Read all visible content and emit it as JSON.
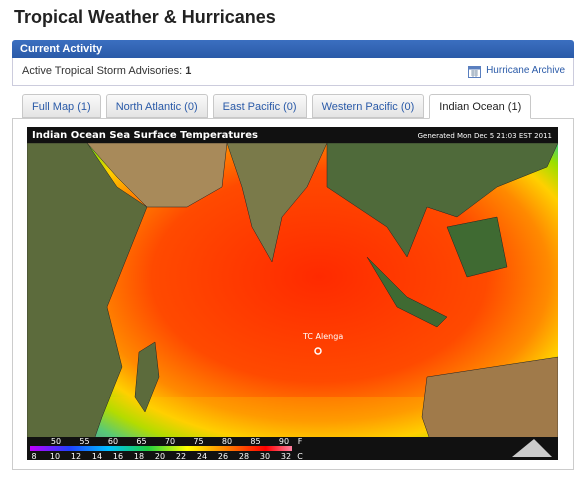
{
  "header": {
    "title": "Tropical Weather & Hurricanes"
  },
  "panel": {
    "title": "Current Activity",
    "advisories_label": "Active Tropical Storm Advisories:",
    "advisories_count": 1,
    "archive_link": "Hurricane Archive"
  },
  "tabs": [
    "Full Map (1)",
    "North Atlantic (0)",
    "East Pacific (0)",
    "Western Pacific (0)",
    "Indian Ocean (1)"
  ],
  "active_tab": 4,
  "map": {
    "title": "Indian Ocean Sea Surface Temperatures",
    "generated": "Generated Mon Dec  5 21:03 EST 2011",
    "storm_label": "TC Alenga",
    "legend": {
      "fahrenheit": [
        50,
        55,
        60,
        65,
        70,
        75,
        80,
        85,
        90
      ],
      "fahrenheit_unit": "F",
      "celsius": [
        8,
        10,
        12,
        14,
        16,
        18,
        20,
        22,
        24,
        26,
        28,
        30,
        32
      ],
      "celsius_unit": "C"
    }
  }
}
